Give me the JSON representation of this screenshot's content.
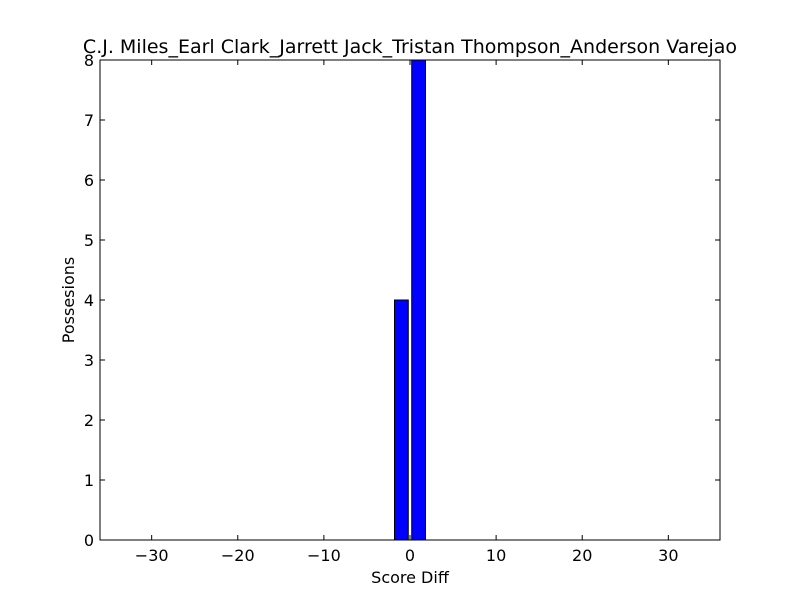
{
  "chart_data": {
    "type": "bar",
    "title": "C.J. Miles_Earl Clark_Jarrett Jack_Tristan Thompson_Anderson Varejao",
    "xlabel": "Score Diff",
    "ylabel": "Possesions",
    "xlim": [
      -36,
      36
    ],
    "ylim": [
      0,
      8
    ],
    "bar_width": 1.6,
    "bar_color": "#0000ff",
    "x": [
      -35,
      -34,
      -33,
      -32,
      -31,
      -30,
      -29,
      -28,
      -27,
      -26,
      -25,
      -24,
      -23,
      -22,
      -21,
      -20,
      -19,
      -18,
      -17,
      -16,
      -15,
      -14,
      -13,
      -12,
      -11,
      -10,
      -9,
      -8,
      -7,
      -6,
      -5,
      -4,
      -3,
      -2,
      -1,
      0,
      1,
      2,
      3,
      4,
      5,
      6,
      7,
      8,
      9,
      10,
      11,
      12,
      13,
      14,
      15,
      16,
      17,
      18,
      19,
      20,
      21,
      22,
      23,
      24,
      25,
      26,
      27,
      28,
      29,
      30,
      31,
      32,
      33,
      34,
      35
    ],
    "values": [
      0,
      0,
      0,
      0,
      0,
      0,
      0,
      0,
      0,
      0,
      0,
      0,
      0,
      0,
      0,
      0,
      0,
      0,
      0,
      0,
      0,
      0,
      0,
      0,
      0,
      0,
      0,
      0,
      0,
      0,
      0,
      0,
      0,
      0,
      4,
      0,
      8,
      0,
      0,
      0,
      0,
      0,
      0,
      0,
      0,
      0,
      0,
      0,
      0,
      0,
      0,
      0,
      0,
      0,
      0,
      0,
      0,
      0,
      0,
      0,
      0,
      0,
      0,
      0,
      0,
      0,
      0,
      0,
      0,
      0,
      0
    ],
    "xticks": [
      -30,
      -20,
      -10,
      0,
      10,
      20,
      30
    ],
    "xtick_labels": [
      "−30",
      "−20",
      "−10",
      "0",
      "10",
      "20",
      "30"
    ],
    "yticks": [
      0,
      1,
      2,
      3,
      4,
      5,
      6,
      7,
      8
    ],
    "ytick_labels": [
      "0",
      "1",
      "2",
      "3",
      "4",
      "5",
      "6",
      "7",
      "8"
    ],
    "grid": false,
    "legend": "none"
  }
}
